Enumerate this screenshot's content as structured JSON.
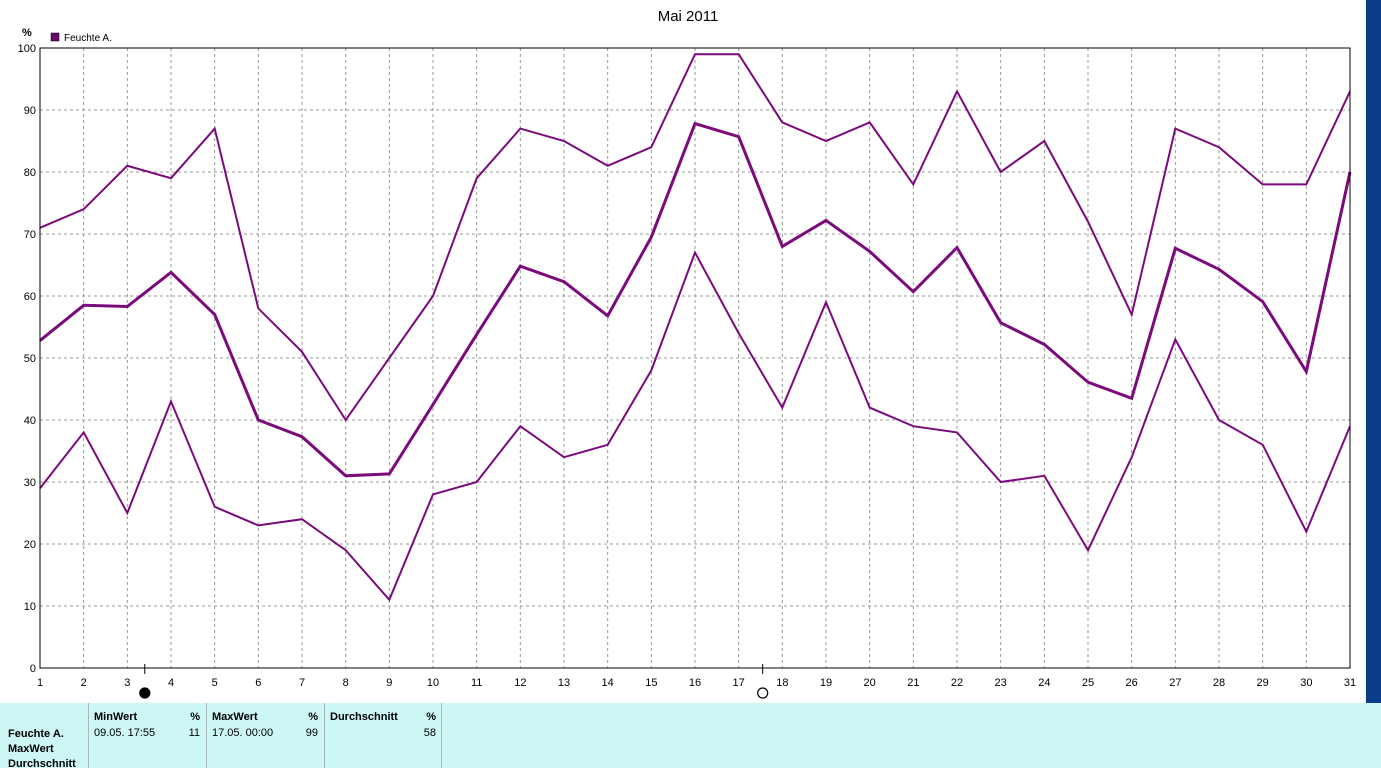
{
  "chart_data": {
    "type": "line",
    "title": "Mai 2011",
    "ylabel": "%",
    "legend": "Feuchte A.",
    "legend_position": "top-left",
    "grid": true,
    "ylim": [
      0,
      100
    ],
    "yticks": [
      0,
      10,
      20,
      30,
      40,
      50,
      60,
      70,
      80,
      90,
      100
    ],
    "x": [
      1,
      2,
      3,
      4,
      5,
      6,
      7,
      8,
      9,
      10,
      11,
      12,
      13,
      14,
      15,
      16,
      17,
      18,
      19,
      20,
      21,
      22,
      23,
      24,
      25,
      26,
      27,
      28,
      29,
      30,
      31
    ],
    "color": "#7b0a7b",
    "series": [
      {
        "values": [
          71,
          74,
          81,
          79,
          87,
          58,
          51,
          40,
          50,
          60,
          79,
          87,
          85,
          81,
          84,
          99,
          99,
          88,
          85,
          88,
          78,
          93,
          80,
          85,
          72,
          57,
          87,
          84,
          78,
          78,
          93
        ]
      },
      {
        "values": [
          52.8,
          58.5,
          58.3,
          63.8,
          57,
          40,
          37.3,
          31,
          31.3,
          42.5,
          53.8,
          64.8,
          62.3,
          56.8,
          69.5,
          87.8,
          85.7,
          68,
          72.2,
          67.2,
          60.7,
          67.8,
          55.7,
          52.2,
          46.1,
          43.5,
          67.7,
          64.3,
          59.1,
          47.8,
          80
        ]
      },
      {
        "values": [
          29,
          38,
          25,
          43,
          26,
          23,
          24,
          19,
          11,
          28,
          30,
          39,
          34,
          36,
          48,
          67,
          54,
          42,
          59,
          42,
          39,
          38,
          30,
          31,
          19,
          34,
          53,
          40,
          36,
          22,
          39
        ]
      }
    ],
    "markers": [
      {
        "symbol": "full-moon",
        "x": 3.4
      },
      {
        "symbol": "new-moon",
        "x": 17.55
      }
    ]
  },
  "stats": {
    "row_labels": [
      "Feuchte A.",
      "MaxWert",
      "Durchschnitt"
    ],
    "columns": [
      {
        "header": "MinWert",
        "unit": "%",
        "time": "09.05.  17:55",
        "value": "11"
      },
      {
        "header": "MaxWert",
        "unit": "%",
        "time": "17.05.  00:00",
        "value": "99"
      },
      {
        "header": "Durchschnitt",
        "unit": "%",
        "time": "",
        "value": "58"
      }
    ]
  }
}
